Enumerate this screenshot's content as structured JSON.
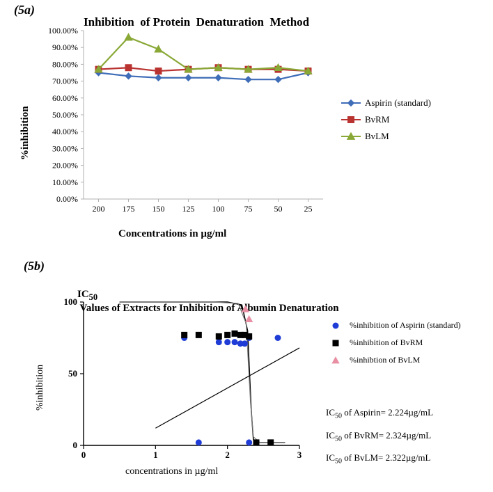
{
  "figure_5a": {
    "panel_label": "(5a)",
    "title": "Inhibition  of Protein  Denaturation  Method",
    "type": "line",
    "x_categories": [
      "200",
      "175",
      "150",
      "125",
      "100",
      "75",
      "50",
      "25"
    ],
    "x_label": "Concentrations in µg/ml",
    "y_label": "%inhibition",
    "y_min": 0,
    "y_max": 100,
    "y_tick_step": 10,
    "y_tick_format": "{v}.00%",
    "series": [
      {
        "name": "Aspirin (standard)",
        "color": "#3f6db8",
        "marker": "diamond",
        "marker_fill": "#3f6db8",
        "values": [
          75,
          73,
          72,
          72,
          72,
          71,
          71,
          75
        ]
      },
      {
        "name": "BvRM",
        "color": "#b93331",
        "marker": "square",
        "marker_fill": "#b93331",
        "values": [
          77,
          78,
          76,
          77,
          78,
          77,
          77,
          76
        ]
      },
      {
        "name": "BvLM",
        "color": "#89a836",
        "marker": "triangle",
        "marker_fill": "#89a836",
        "values": [
          77,
          96,
          89,
          77,
          78,
          77,
          78,
          76
        ]
      }
    ],
    "title_fontsize": 17,
    "axis_label_fontsize": 15,
    "legend_fontsize": 13,
    "background_color": "#ffffff",
    "plot_border_color": "#b0b0b0",
    "grid": false
  },
  "figure_5b": {
    "panel_label": "(5b)",
    "title_html": "IC50 Values of Extracts for Inhibition of Albumin Denaturation",
    "type": "scatter",
    "x_label": "concentrations in µg/ml",
    "y_label": "%inhibition",
    "x_min": 0,
    "x_max": 3,
    "x_tick_step": 1,
    "y_min": 0,
    "y_max": 100,
    "y_tick_step": 50,
    "series": [
      {
        "name": "%inhibition of Aspirin (standard)",
        "color": "#1f3dd6",
        "marker": "circle",
        "marker_fill": "#1f3dd6",
        "points": [
          [
            1.4,
            75
          ],
          [
            1.6,
            2
          ],
          [
            1.88,
            72
          ],
          [
            2.0,
            72
          ],
          [
            2.1,
            72
          ],
          [
            2.18,
            71
          ],
          [
            2.24,
            71
          ],
          [
            2.3,
            75
          ],
          [
            2.3,
            2
          ],
          [
            2.7,
            75
          ]
        ]
      },
      {
        "name": "%inhibition of BvRM",
        "color": "#000000",
        "marker": "square",
        "marker_fill": "#000000",
        "points": [
          [
            1.4,
            77
          ],
          [
            1.6,
            77
          ],
          [
            1.88,
            76
          ],
          [
            2.0,
            77
          ],
          [
            2.1,
            78
          ],
          [
            2.18,
            77
          ],
          [
            2.24,
            77
          ],
          [
            2.3,
            76
          ],
          [
            2.4,
            2
          ],
          [
            2.6,
            2
          ]
        ]
      },
      {
        "name": "%inhibtion of BvLM",
        "color": "#e98fa4",
        "marker": "triangle",
        "marker_fill": "#e98fa4",
        "points": [
          [
            2.25,
            95
          ],
          [
            2.3,
            88
          ]
        ]
      }
    ],
    "fit_curves": [
      {
        "color": "#000000",
        "width": 1.5,
        "path": [
          [
            0.5,
            100
          ],
          [
            1.0,
            100
          ],
          [
            1.5,
            100
          ],
          [
            2.0,
            100
          ],
          [
            2.2,
            98
          ],
          [
            2.28,
            80
          ],
          [
            2.33,
            25
          ],
          [
            2.36,
            4
          ],
          [
            2.45,
            2
          ],
          [
            2.8,
            2
          ]
        ]
      },
      {
        "color": "#7a7a7a",
        "width": 1.2,
        "path": [
          [
            0.5,
            100
          ],
          [
            1.2,
            100
          ],
          [
            1.8,
            100
          ],
          [
            2.15,
            99
          ],
          [
            2.26,
            85
          ],
          [
            2.32,
            30
          ],
          [
            2.36,
            6
          ],
          [
            2.45,
            2
          ],
          [
            2.8,
            2
          ]
        ]
      },
      {
        "color": "#000000",
        "width": 1.2,
        "path": [
          [
            1.0,
            12
          ],
          [
            3.0,
            68
          ]
        ]
      }
    ],
    "ic50_text": [
      "IC50 of Aspirin= 2.224µg/mL",
      "IC50 of BvRM= 2.324µg/mL",
      "IC50 of BvLM= 2.322µg/mL"
    ],
    "title_fontsize": 15,
    "axis_label_fontsize": 14,
    "legend_fontsize": 12,
    "background_color": "#ffffff",
    "axis_color": "#000000"
  }
}
